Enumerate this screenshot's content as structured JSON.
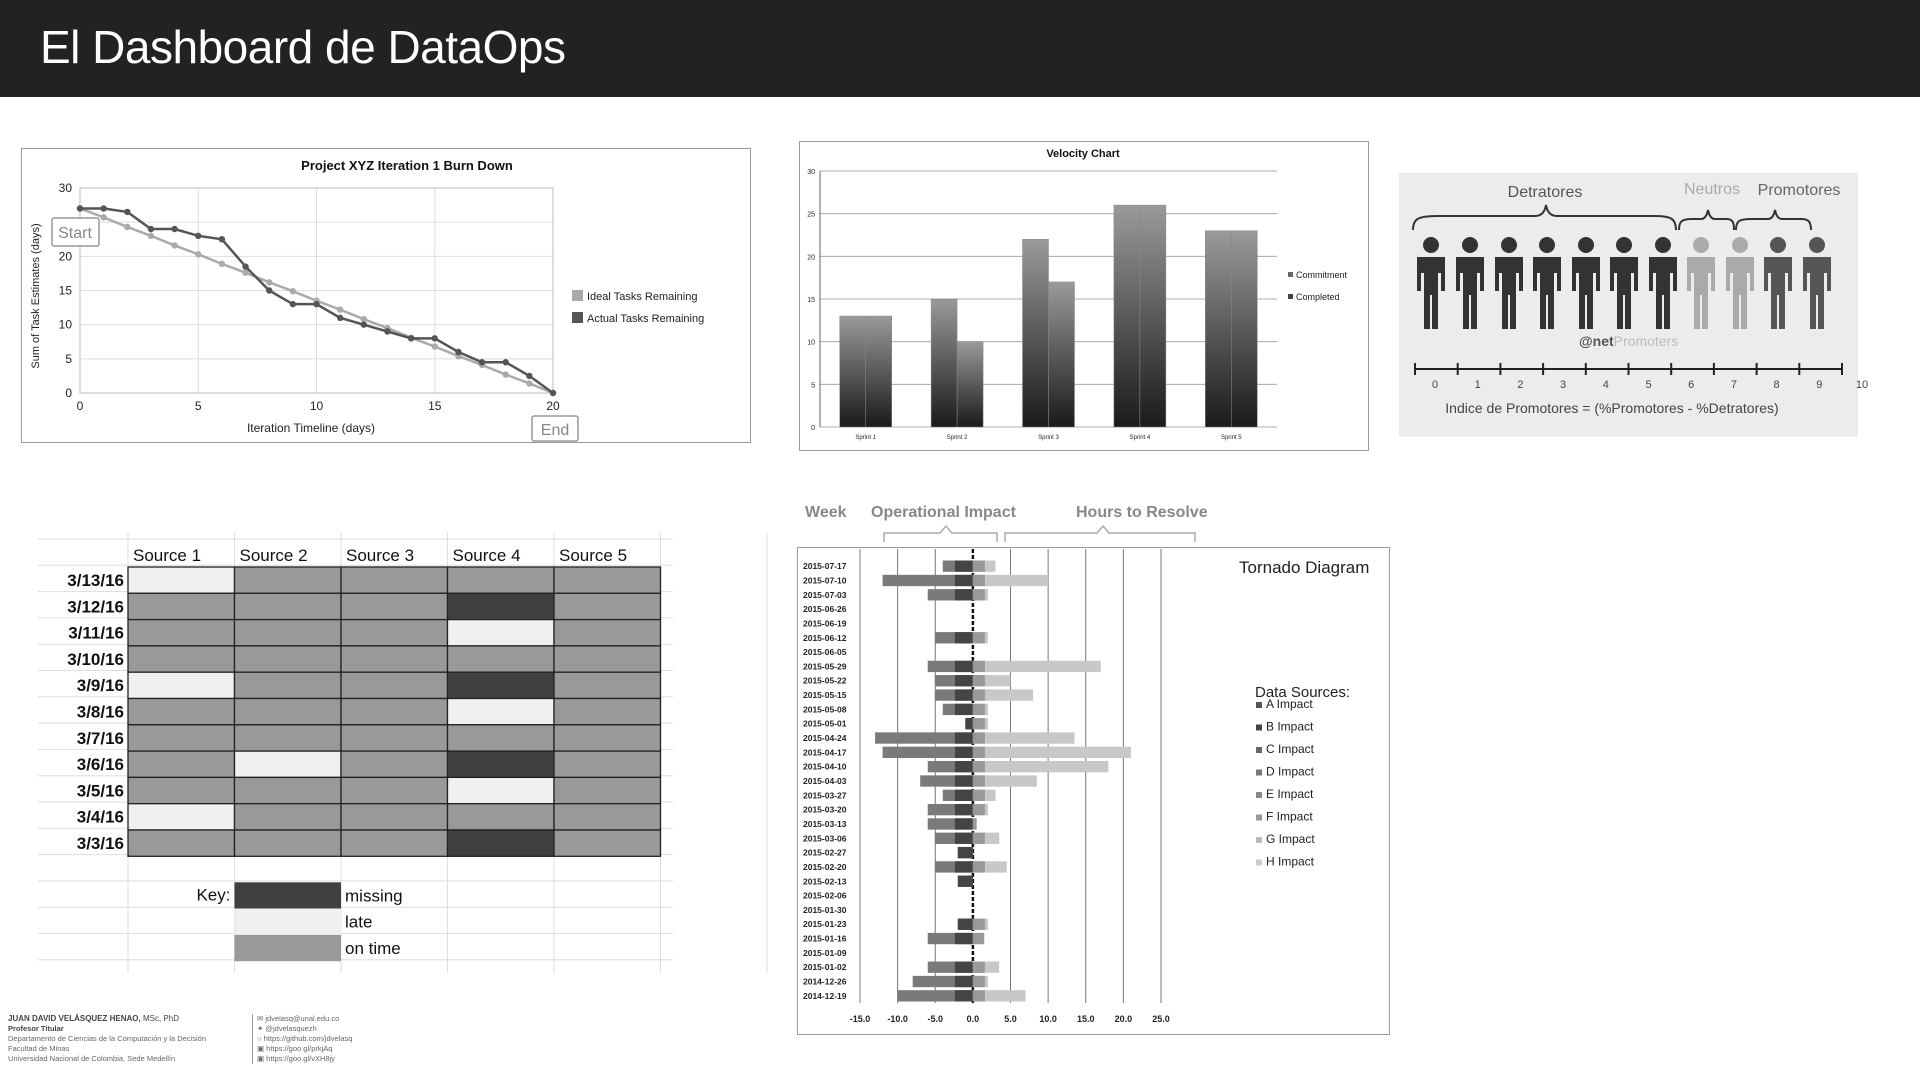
{
  "header": {
    "title": "El Dashboard de DataOps"
  },
  "burndown": {
    "title": "Project XYZ Iteration 1 Burn Down",
    "xlabel": "Iteration Timeline (days)",
    "ylabel": "Sum of Task Estimates (days)",
    "start_label": "Start",
    "end_label": "End",
    "legend": [
      "Ideal Tasks Remaining",
      "Actual Tasks Remaining"
    ],
    "x_ticks": [
      "0",
      "5",
      "10",
      "15",
      "20"
    ],
    "y_ticks": [
      "0",
      "5",
      "10",
      "15",
      "20",
      "25",
      "30"
    ]
  },
  "velocity": {
    "title": "Velocity Chart",
    "legend": [
      "Commitment",
      "Completed"
    ],
    "y_ticks": [
      "0",
      "5",
      "10",
      "15",
      "20",
      "25",
      "30"
    ],
    "categories": [
      "Sprint 1",
      "Sprint 2",
      "Sprint 3",
      "Sprint 4",
      "Sprint 5"
    ]
  },
  "nps": {
    "detractors": "Detratores",
    "neutrals": "Neutros",
    "promoters": "Promotores",
    "brand_prefix": "@net",
    "brand_suffix": "Promoters",
    "scale": [
      "0",
      "1",
      "2",
      "3",
      "4",
      "5",
      "6",
      "7",
      "8",
      "9",
      "10"
    ],
    "formula": "Indice de Promotores = (%Promotores - %Detratores)"
  },
  "heatmap": {
    "columns": [
      "Source 1",
      "Source 2",
      "Source 3",
      "Source 4",
      "Source 5"
    ],
    "rows": [
      "3/13/16",
      "3/12/16",
      "3/11/16",
      "3/10/16",
      "3/9/16",
      "3/8/16",
      "3/7/16",
      "3/6/16",
      "3/5/16",
      "3/4/16",
      "3/3/16"
    ],
    "status": [
      [
        "late",
        "on time",
        "on time",
        "on time",
        "on time"
      ],
      [
        "on time",
        "on time",
        "on time",
        "missing",
        "on time"
      ],
      [
        "on time",
        "on time",
        "on time",
        "late",
        "on time"
      ],
      [
        "on time",
        "on time",
        "on time",
        "on time",
        "on time"
      ],
      [
        "late",
        "on time",
        "on time",
        "missing",
        "on time"
      ],
      [
        "on time",
        "on time",
        "on time",
        "late",
        "on time"
      ],
      [
        "on time",
        "on time",
        "on time",
        "on time",
        "on time"
      ],
      [
        "on time",
        "late",
        "on time",
        "missing",
        "on time"
      ],
      [
        "on time",
        "on time",
        "on time",
        "late",
        "on time"
      ],
      [
        "late",
        "on time",
        "on time",
        "on time",
        "on time"
      ],
      [
        "on time",
        "on time",
        "on time",
        "missing",
        "on time"
      ]
    ],
    "key_label": "Key:",
    "key": [
      "missing",
      "late",
      "on time"
    ],
    "colors": {
      "missing": "#404040",
      "late": "#f0f0f0",
      "on time": "#999999"
    }
  },
  "tornado": {
    "header_week": "Week",
    "header_impact": "Operational Impact",
    "header_hours": "Hours to Resolve",
    "title": "Tornado Diagram",
    "legend_title": "Data Sources:",
    "legend": [
      "A Impact",
      "B Impact",
      "C Impact",
      "D Impact",
      "E Impact",
      "F Impact",
      "G Impact",
      "H Impact"
    ],
    "x_ticks": [
      "-15.0",
      "-10.0",
      "-5.0",
      "0.0",
      "5.0",
      "10.0",
      "15.0",
      "20.0",
      "25.0"
    ],
    "weeks": [
      "2015-07-17",
      "2015-07-10",
      "2015-07-03",
      "2015-06-26",
      "2015-06-19",
      "2015-06-12",
      "2015-06-05",
      "2015-05-29",
      "2015-05-22",
      "2015-05-15",
      "2015-05-08",
      "2015-05-01",
      "2015-04-24",
      "2015-04-17",
      "2015-04-10",
      "2015-04-03",
      "2015-03-27",
      "2015-03-20",
      "2015-03-13",
      "2015-03-06",
      "2015-02-27",
      "2015-02-20",
      "2015-02-13",
      "2015-02-06",
      "2015-01-30",
      "2015-01-23",
      "2015-01-16",
      "2015-01-09",
      "2015-01-02",
      "2014-12-26",
      "2014-12-19"
    ]
  },
  "chart_data": [
    {
      "type": "line",
      "title": "Project XYZ Iteration 1 Burn Down",
      "xlabel": "Iteration Timeline (days)",
      "ylabel": "Sum of Task Estimates (days)",
      "xlim": [
        0,
        20
      ],
      "ylim": [
        0,
        30
      ],
      "series": [
        {
          "name": "Ideal Tasks Remaining",
          "x": [
            0,
            1,
            2,
            3,
            4,
            5,
            6,
            7,
            8,
            9,
            10,
            11,
            12,
            13,
            14,
            15,
            16,
            17,
            18,
            19,
            20
          ],
          "values": [
            27,
            25.7,
            24.3,
            23,
            21.6,
            20.3,
            18.9,
            17.6,
            16.2,
            14.9,
            13.5,
            12.2,
            10.8,
            9.5,
            8.1,
            6.8,
            5.4,
            4.1,
            2.7,
            1.4,
            0
          ]
        },
        {
          "name": "Actual Tasks Remaining",
          "x": [
            0,
            1,
            2,
            3,
            4,
            5,
            6,
            7,
            8,
            9,
            10,
            11,
            12,
            13,
            14,
            15,
            16,
            17,
            18,
            19,
            20
          ],
          "values": [
            27,
            27,
            26.5,
            24,
            24,
            23,
            22.5,
            18.5,
            15,
            13,
            13,
            11,
            10,
            9,
            8,
            8,
            6,
            4.5,
            4.5,
            2.5,
            0
          ]
        }
      ]
    },
    {
      "type": "bar",
      "title": "Velocity Chart",
      "categories": [
        "Sprint 1",
        "Sprint 2",
        "Sprint 3",
        "Sprint 4",
        "Sprint 5"
      ],
      "ylim": [
        0,
        30
      ],
      "series": [
        {
          "name": "Commitment",
          "values": [
            13,
            15,
            22,
            26,
            23
          ]
        },
        {
          "name": "Completed",
          "values": [
            13,
            10,
            17,
            26,
            23
          ]
        }
      ]
    },
    {
      "type": "bar",
      "title": "Tornado Diagram",
      "xlim": [
        -15,
        25
      ],
      "categories": [
        "2015-07-17",
        "2015-07-10",
        "2015-07-03",
        "2015-06-26",
        "2015-06-19",
        "2015-06-12",
        "2015-06-05",
        "2015-05-29",
        "2015-05-22",
        "2015-05-15",
        "2015-05-08",
        "2015-05-01",
        "2015-04-24",
        "2015-04-17",
        "2015-04-10",
        "2015-04-03",
        "2015-03-27",
        "2015-03-20",
        "2015-03-13",
        "2015-03-06",
        "2015-02-27",
        "2015-02-20",
        "2015-02-13",
        "2015-02-06",
        "2015-01-30",
        "2015-01-23",
        "2015-01-16",
        "2015-01-09",
        "2015-01-02",
        "2014-12-26",
        "2014-12-19"
      ],
      "series": [
        {
          "name": "Operational Impact",
          "values": [
            -4,
            -12,
            -6,
            0,
            0,
            -5,
            0,
            -6,
            -5,
            -5,
            -4,
            -1,
            -13,
            -12,
            -6,
            -7,
            -4,
            -6,
            -6,
            -5,
            -2,
            -5,
            -2,
            0,
            0,
            -2,
            -6,
            0,
            -6,
            -8,
            -10
          ]
        },
        {
          "name": "Hours to Resolve",
          "values": [
            3,
            10,
            2,
            0,
            0,
            2,
            0,
            17,
            5,
            8,
            2,
            2,
            13.5,
            21,
            18,
            8.5,
            3,
            2,
            0.5,
            3.5,
            0,
            4.5,
            0,
            0,
            0,
            2,
            1.5,
            0,
            3.5,
            2,
            7
          ]
        }
      ]
    }
  ]
}
